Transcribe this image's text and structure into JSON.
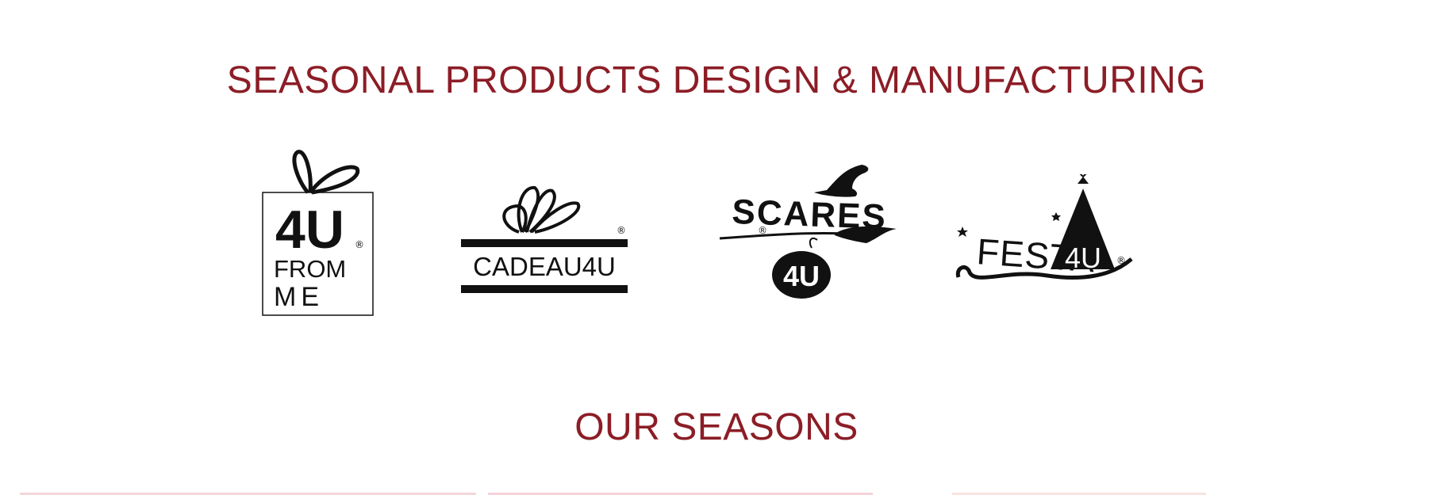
{
  "header": {
    "title": "SEASONAL PRODUCTS DESIGN & MANUFACTURING"
  },
  "brands": [
    {
      "name": "4U FROM ME",
      "icon": "gift-box-logo-icon",
      "line1": "4U",
      "line2": "FROM",
      "line3": "ME",
      "registered": "®"
    },
    {
      "name": "CADEAU4U",
      "icon": "ribbon-bow-logo-icon",
      "wordmark": "CADEAU4U",
      "registered": "®"
    },
    {
      "name": "SCARES 4U",
      "icon": "witch-hat-logo-icon",
      "wordmark": "SCARES",
      "badge": "4U",
      "registered": "®"
    },
    {
      "name": "FESTA 4U",
      "icon": "party-hat-logo-icon",
      "wordmark": "FESTA",
      "badge": "4U",
      "registered": "®"
    }
  ],
  "seasons": {
    "title": "OUR SEASONS"
  },
  "colors": {
    "accent": "#8c1d26",
    "logo": "#111111",
    "background": "#ffffff"
  }
}
